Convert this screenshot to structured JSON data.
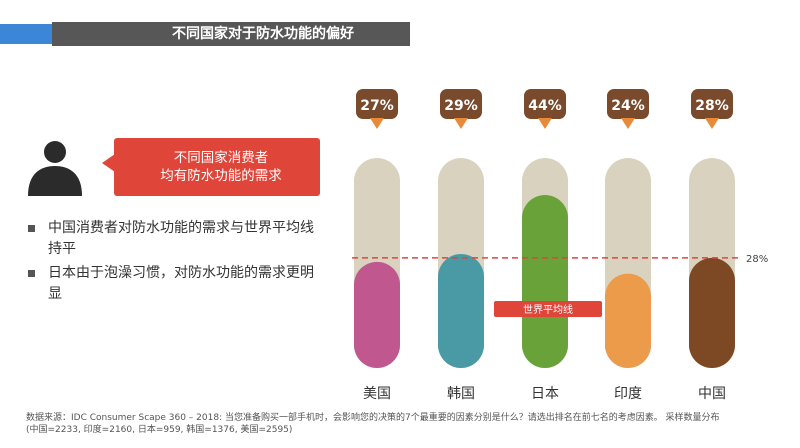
{
  "header": {
    "title": "不同国家对于防水功能的偏好"
  },
  "callout": {
    "line1": "不同国家消费者",
    "line2": "均有防水功能的需求"
  },
  "bullets": [
    "中国消费者对防水功能的需求与世界平均线持平",
    "日本由于泡澡习惯，对防水功能的需求更明显"
  ],
  "footnote": {
    "line1": "数据来源：IDC Consumer Scape 360 – 2018: 当您准备购买一部手机时，会影响您的决策的7个最重要的因素分别是什么？请选出排名在前七名的考虑因素。 采样数量分布",
    "line2": "(中国=2233, 印度=2160, 日本=959, 韩国=1376, 美国=2595)"
  },
  "icons": {
    "person": "person-silhouette-icon"
  },
  "colors": {
    "accent_blue": "#3b86d6",
    "title_bar": "#575757",
    "callout_red": "#e0453a",
    "track": "#d9d2bf",
    "badge": "#7a4a2c",
    "average_line": "#e0453a"
  },
  "chart_data": {
    "type": "bar",
    "categories": [
      "美国",
      "韩国",
      "日本",
      "印度",
      "中国"
    ],
    "values": [
      27,
      29,
      44,
      24,
      28
    ],
    "value_labels": [
      "27%",
      "29%",
      "44%",
      "24%",
      "28%"
    ],
    "colors": [
      "#c0578f",
      "#4a9aa6",
      "#6aa23a",
      "#ec9b4a",
      "#7d4924"
    ],
    "ylim": [
      0,
      100
    ],
    "average": {
      "value": 28,
      "value_label": "28%",
      "label": "世界平均线"
    }
  }
}
